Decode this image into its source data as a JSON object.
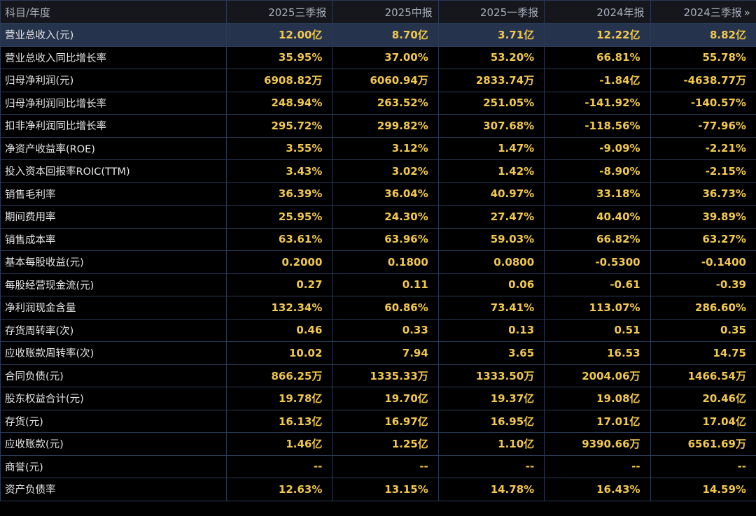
{
  "header": {
    "label": "科目/年度",
    "periods": [
      "2025三季报",
      "2025中报",
      "2025一季报",
      "2024年报",
      "2024三季报"
    ],
    "more_icon": "double-chevron-right"
  },
  "rows": [
    {
      "label": "营业总收入(元)",
      "values": [
        "12.00亿",
        "8.70亿",
        "3.71亿",
        "12.22亿",
        "8.82亿"
      ],
      "selected": true
    },
    {
      "label": "营业总收入同比增长率",
      "values": [
        "35.95%",
        "37.00%",
        "53.20%",
        "66.81%",
        "55.78%"
      ]
    },
    {
      "label": "归母净利润(元)",
      "values": [
        "6908.82万",
        "6060.94万",
        "2833.74万",
        "-1.84亿",
        "-4638.77万"
      ]
    },
    {
      "label": "归母净利润同比增长率",
      "values": [
        "248.94%",
        "263.52%",
        "251.05%",
        "-141.92%",
        "-140.57%"
      ]
    },
    {
      "label": "扣非净利润同比增长率",
      "values": [
        "295.72%",
        "299.82%",
        "307.68%",
        "-118.56%",
        "-77.96%"
      ]
    },
    {
      "label": "净资产收益率(ROE)",
      "values": [
        "3.55%",
        "3.12%",
        "1.47%",
        "-9.09%",
        "-2.21%"
      ]
    },
    {
      "label": "投入资本回报率ROIC(TTM)",
      "values": [
        "3.43%",
        "3.02%",
        "1.42%",
        "-8.90%",
        "-2.15%"
      ]
    },
    {
      "label": "销售毛利率",
      "values": [
        "36.39%",
        "36.04%",
        "40.97%",
        "33.18%",
        "36.73%"
      ]
    },
    {
      "label": "期间费用率",
      "values": [
        "25.95%",
        "24.30%",
        "27.47%",
        "40.40%",
        "39.89%"
      ]
    },
    {
      "label": "销售成本率",
      "values": [
        "63.61%",
        "63.96%",
        "59.03%",
        "66.82%",
        "63.27%"
      ]
    },
    {
      "label": "基本每股收益(元)",
      "values": [
        "0.2000",
        "0.1800",
        "0.0800",
        "-0.5300",
        "-0.1400"
      ]
    },
    {
      "label": "每股经营现金流(元)",
      "values": [
        "0.27",
        "0.11",
        "0.06",
        "-0.61",
        "-0.39"
      ]
    },
    {
      "label": "净利润现金含量",
      "values": [
        "132.34%",
        "60.86%",
        "73.41%",
        "113.07%",
        "286.60%"
      ]
    },
    {
      "label": "存货周转率(次)",
      "values": [
        "0.46",
        "0.33",
        "0.13",
        "0.51",
        "0.35"
      ]
    },
    {
      "label": "应收账款周转率(次)",
      "values": [
        "10.02",
        "7.94",
        "3.65",
        "16.53",
        "14.75"
      ]
    },
    {
      "label": "合同负债(元)",
      "values": [
        "866.25万",
        "1335.33万",
        "1333.50万",
        "2004.06万",
        "1466.54万"
      ]
    },
    {
      "label": "股东权益合计(元)",
      "values": [
        "19.78亿",
        "19.70亿",
        "19.37亿",
        "19.08亿",
        "20.46亿"
      ]
    },
    {
      "label": "存货(元)",
      "values": [
        "16.13亿",
        "16.97亿",
        "16.95亿",
        "17.01亿",
        "17.04亿"
      ]
    },
    {
      "label": "应收账款(元)",
      "values": [
        "1.46亿",
        "1.25亿",
        "1.10亿",
        "9390.66万",
        "6561.69万"
      ]
    },
    {
      "label": "商誉(元)",
      "values": [
        "--",
        "--",
        "--",
        "--",
        "--"
      ]
    },
    {
      "label": "资产负债率",
      "values": [
        "12.63%",
        "13.15%",
        "14.78%",
        "16.43%",
        "14.59%"
      ]
    }
  ]
}
